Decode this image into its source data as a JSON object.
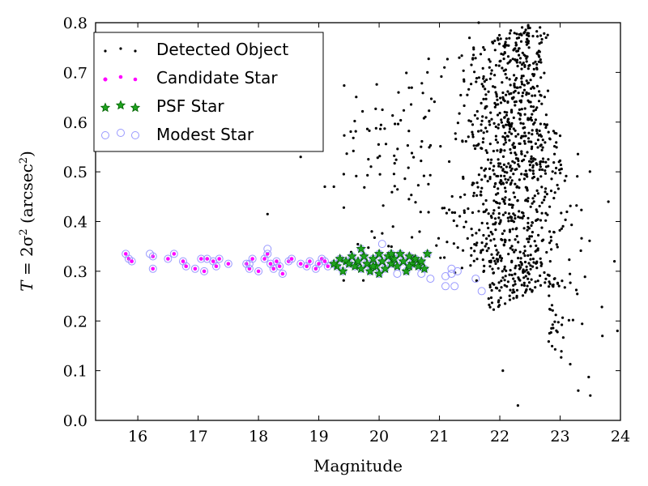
{
  "chart_data": {
    "type": "scatter",
    "xlabel": "Magnitude",
    "ylabel_prefix": "T",
    "ylabel_mid": " = 2σ",
    "ylabel_sup": "2",
    "ylabel_unit_open": " (arcsec",
    "ylabel_unit_sup": "2",
    "ylabel_unit_close": ")",
    "xlim": [
      15.3,
      24
    ],
    "ylim": [
      0.0,
      0.8
    ],
    "xticks": [
      16,
      17,
      18,
      19,
      20,
      21,
      22,
      23,
      24
    ],
    "yticks": [
      0.0,
      0.1,
      0.2,
      0.3,
      0.4,
      0.5,
      0.6,
      0.7,
      0.8
    ],
    "legend_position": "top-left",
    "series": [
      {
        "name": "Detected Object",
        "marker": "dot",
        "color": "#000000"
      },
      {
        "name": "Candidate Star",
        "marker": "circle",
        "color": "#ff00ff"
      },
      {
        "name": "PSF Star",
        "marker": "star",
        "color": "#008000"
      },
      {
        "name": "Modest Star",
        "marker": "open-circle",
        "color": "#9999ff"
      }
    ],
    "points": {
      "candidate": [
        [
          15.8,
          0.335
        ],
        [
          15.85,
          0.325
        ],
        [
          15.9,
          0.32
        ],
        [
          16.25,
          0.33
        ],
        [
          16.25,
          0.305
        ],
        [
          16.5,
          0.325
        ],
        [
          16.6,
          0.335
        ],
        [
          16.75,
          0.32
        ],
        [
          16.8,
          0.31
        ],
        [
          16.95,
          0.305
        ],
        [
          17.05,
          0.325
        ],
        [
          17.1,
          0.3
        ],
        [
          17.15,
          0.325
        ],
        [
          17.25,
          0.32
        ],
        [
          17.3,
          0.31
        ],
        [
          17.35,
          0.325
        ],
        [
          17.5,
          0.315
        ],
        [
          17.8,
          0.315
        ],
        [
          17.85,
          0.305
        ],
        [
          17.9,
          0.325
        ],
        [
          18.0,
          0.3
        ],
        [
          18.1,
          0.325
        ],
        [
          18.15,
          0.335
        ],
        [
          18.2,
          0.315
        ],
        [
          18.25,
          0.305
        ],
        [
          18.3,
          0.32
        ],
        [
          18.35,
          0.31
        ],
        [
          18.4,
          0.295
        ],
        [
          18.5,
          0.32
        ],
        [
          18.55,
          0.325
        ],
        [
          18.7,
          0.315
        ],
        [
          18.8,
          0.31
        ],
        [
          18.85,
          0.32
        ],
        [
          18.95,
          0.305
        ],
        [
          19.0,
          0.315
        ],
        [
          19.05,
          0.325
        ],
        [
          19.1,
          0.32
        ],
        [
          19.15,
          0.31
        ]
      ],
      "psf": [
        [
          19.3,
          0.31
        ],
        [
          19.35,
          0.325
        ],
        [
          19.4,
          0.3
        ],
        [
          19.45,
          0.32
        ],
        [
          19.5,
          0.315
        ],
        [
          19.55,
          0.33
        ],
        [
          19.6,
          0.31
        ],
        [
          19.65,
          0.32
        ],
        [
          19.7,
          0.305
        ],
        [
          19.75,
          0.33
        ],
        [
          19.8,
          0.315
        ],
        [
          19.85,
          0.3
        ],
        [
          19.9,
          0.325
        ],
        [
          19.95,
          0.31
        ],
        [
          20.0,
          0.335
        ],
        [
          20.05,
          0.32
        ],
        [
          20.1,
          0.305
        ],
        [
          20.15,
          0.33
        ],
        [
          20.2,
          0.315
        ],
        [
          20.25,
          0.325
        ],
        [
          20.3,
          0.31
        ],
        [
          20.35,
          0.335
        ],
        [
          20.4,
          0.32
        ],
        [
          20.45,
          0.3
        ],
        [
          20.5,
          0.33
        ],
        [
          20.55,
          0.315
        ],
        [
          20.6,
          0.325
        ],
        [
          20.65,
          0.31
        ],
        [
          20.7,
          0.32
        ],
        [
          20.75,
          0.305
        ],
        [
          20.8,
          0.335
        ],
        [
          19.25,
          0.315
        ],
        [
          19.7,
          0.345
        ],
        [
          20.0,
          0.295
        ],
        [
          20.2,
          0.335
        ],
        [
          20.5,
          0.31
        ],
        [
          19.9,
          0.31
        ]
      ],
      "modest_extra": [
        [
          20.05,
          0.355
        ],
        [
          20.3,
          0.295
        ],
        [
          20.7,
          0.295
        ],
        [
          20.85,
          0.285
        ],
        [
          21.1,
          0.29
        ],
        [
          21.1,
          0.27
        ],
        [
          21.2,
          0.295
        ],
        [
          21.25,
          0.27
        ],
        [
          21.3,
          0.3
        ],
        [
          21.2,
          0.305
        ],
        [
          21.6,
          0.285
        ],
        [
          21.7,
          0.26
        ],
        [
          18.15,
          0.345
        ],
        [
          17.85,
          0.315
        ],
        [
          16.2,
          0.335
        ]
      ],
      "scatter_seed": 20250101
    },
    "legend": [
      {
        "label": "Detected Object"
      },
      {
        "label": "Candidate Star"
      },
      {
        "label": "PSF Star"
      },
      {
        "label": "Modest Star"
      }
    ]
  }
}
